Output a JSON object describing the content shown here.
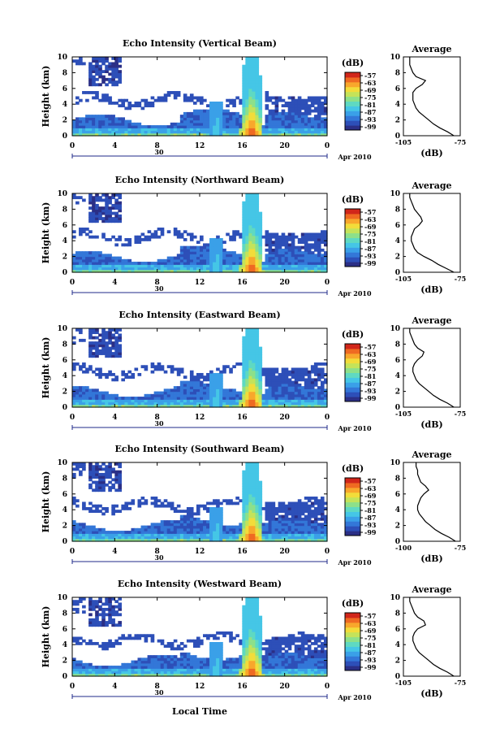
{
  "figure": {
    "xlabel": "Local Time",
    "date_label": "Apr 2010",
    "day_label": "30",
    "ylabel": "Height (km)",
    "avg_title": "Average",
    "avg_xlabel": "(dB)",
    "cb_unit": "(dB)"
  },
  "colormap": [
    "#2b2f86",
    "#2d4fb8",
    "#3377d8",
    "#3aa0e8",
    "#45c6e6",
    "#5fd9c2",
    "#8de08a",
    "#c4e35a",
    "#f2dc3a",
    "#f8a72c",
    "#ef6a22",
    "#d1261a"
  ],
  "chart_data": [
    {
      "type": "heatmap",
      "title": "Echo Intensity (Vertical Beam)",
      "x_ticks": [
        "0",
        "4",
        "8",
        "12",
        "16",
        "20",
        "0"
      ],
      "y_ticks": [
        "0",
        "2",
        "4",
        "6",
        "8",
        "10"
      ],
      "xlim": [
        0,
        24
      ],
      "ylim": [
        0,
        10
      ],
      "colorbar_ticks": [
        "-57",
        "-63",
        "-69",
        "-75",
        "-81",
        "-87",
        "-93",
        "-99"
      ],
      "avg_xticks": [
        "-105",
        "-75"
      ],
      "avg_profile": {
        "height": [
          0,
          0.5,
          1,
          1.5,
          2,
          2.5,
          3,
          3.5,
          4,
          4.5,
          5,
          5.5,
          6,
          6.5,
          7,
          7.5,
          8,
          8.5,
          9,
          9.5,
          10
        ],
        "db": [
          -76,
          -80,
          -85,
          -89,
          -92,
          -95,
          -98,
          -100,
          -101,
          -102,
          -102,
          -102,
          -100,
          -96,
          -94,
          -100,
          -102,
          -103,
          -104,
          -104,
          -104
        ]
      }
    },
    {
      "type": "heatmap",
      "title": "Echo Intensity (Northward Beam)",
      "x_ticks": [
        "0",
        "4",
        "8",
        "12",
        "16",
        "20",
        "0"
      ],
      "y_ticks": [
        "0",
        "2",
        "4",
        "6",
        "8",
        "10"
      ],
      "xlim": [
        0,
        24
      ],
      "ylim": [
        0,
        10
      ],
      "colorbar_ticks": [
        "-57",
        "-63",
        "-69",
        "-75",
        "-81",
        "-87",
        "-93",
        "-99"
      ],
      "avg_xticks": [
        "-105",
        "-75"
      ],
      "avg_profile": {
        "height": [
          0,
          0.5,
          1,
          1.5,
          2,
          2.5,
          3,
          3.5,
          4,
          4.5,
          5,
          5.5,
          6,
          6.5,
          7,
          7.5,
          8,
          8.5,
          9,
          9.5,
          10
        ],
        "db": [
          -76,
          -81,
          -86,
          -90,
          -95,
          -99,
          -101,
          -102,
          -103,
          -103,
          -102,
          -101,
          -98,
          -96,
          -97,
          -99,
          -101,
          -102,
          -103,
          -104,
          -104
        ]
      }
    },
    {
      "type": "heatmap",
      "title": "Echo Intensity (Eastward Beam)",
      "x_ticks": [
        "0",
        "4",
        "8",
        "12",
        "16",
        "20",
        "0"
      ],
      "y_ticks": [
        "0",
        "2",
        "4",
        "6",
        "8",
        "10"
      ],
      "xlim": [
        0,
        24
      ],
      "ylim": [
        0,
        10
      ],
      "colorbar_ticks": [
        "-57",
        "-63",
        "-69",
        "-75",
        "-81",
        "-87",
        "-93",
        "-99"
      ],
      "avg_xticks": [
        "-105",
        "-75"
      ],
      "avg_profile": {
        "height": [
          0,
          0.5,
          1,
          1.5,
          2,
          2.5,
          3,
          3.5,
          4,
          4.5,
          5,
          5.5,
          6,
          6.5,
          7,
          7.5,
          8,
          8.5,
          9,
          9.5,
          10
        ],
        "db": [
          -76,
          -80,
          -85,
          -89,
          -92,
          -95,
          -98,
          -100,
          -101,
          -102,
          -102,
          -101,
          -99,
          -96,
          -95,
          -99,
          -101,
          -102,
          -103,
          -104,
          -104
        ]
      }
    },
    {
      "type": "heatmap",
      "title": "Echo Intensity (Southward Beam)",
      "x_ticks": [
        "0",
        "4",
        "8",
        "12",
        "16",
        "20",
        "0"
      ],
      "y_ticks": [
        "0",
        "2",
        "4",
        "6",
        "8",
        "10"
      ],
      "xlim": [
        0,
        24
      ],
      "ylim": [
        0,
        10
      ],
      "colorbar_ticks": [
        "-57",
        "-63",
        "-69",
        "-75",
        "-81",
        "-87",
        "-93",
        "-99"
      ],
      "avg_xticks": [
        "-100",
        "-75"
      ],
      "avg_profile": {
        "height": [
          0,
          0.5,
          1,
          1.5,
          2,
          2.5,
          3,
          3.5,
          4,
          4.5,
          5,
          5.5,
          6,
          6.5,
          7,
          7.5,
          8,
          8.5,
          9,
          9.5,
          10
        ],
        "db": [
          -75,
          -79,
          -84,
          -88,
          -91,
          -94,
          -96,
          -98,
          -99,
          -99,
          -98,
          -97,
          -95,
          -92,
          -94,
          -97,
          -98,
          -99,
          -99,
          -100,
          -100
        ]
      }
    },
    {
      "type": "heatmap",
      "title": "Echo Intensity (Westward Beam)",
      "x_ticks": [
        "0",
        "4",
        "8",
        "12",
        "16",
        "20",
        "0"
      ],
      "y_ticks": [
        "0",
        "2",
        "4",
        "6",
        "8",
        "10"
      ],
      "xlim": [
        0,
        24
      ],
      "ylim": [
        0,
        10
      ],
      "colorbar_ticks": [
        "-57",
        "-63",
        "-69",
        "-75",
        "-81",
        "-87",
        "-93",
        "-99"
      ],
      "avg_xticks": [
        "-105",
        "-75"
      ],
      "avg_profile": {
        "height": [
          0,
          0.5,
          1,
          1.5,
          2,
          2.5,
          3,
          3.5,
          4,
          4.5,
          5,
          5.5,
          6,
          6.5,
          7,
          7.5,
          8,
          8.5,
          9,
          9.5,
          10
        ],
        "db": [
          -76,
          -80,
          -85,
          -89,
          -92,
          -95,
          -98,
          -100,
          -101,
          -102,
          -102,
          -101,
          -99,
          -94,
          -95,
          -99,
          -101,
          -102,
          -103,
          -104,
          -104
        ]
      }
    }
  ]
}
